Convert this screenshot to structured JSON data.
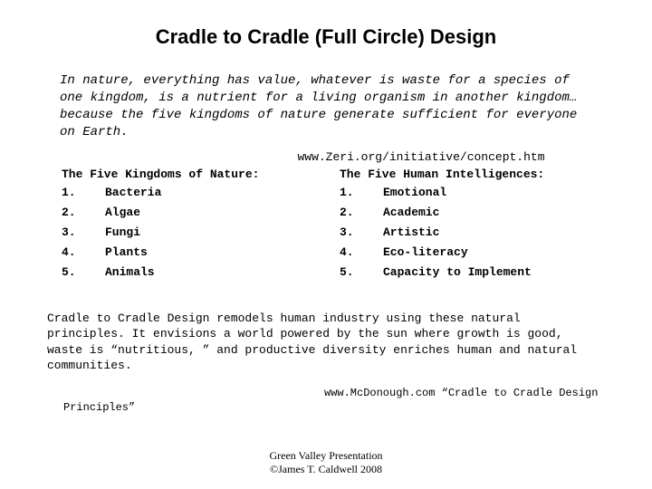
{
  "title": "Cradle to Cradle (Full Circle) Design",
  "quote": "In nature, everything has value, whatever is waste for a species of one kingdom, is a nutrient for a living organism in another kingdom… because the five kingdoms of nature generate sufficient for everyone on Earth.",
  "source1": "www.Zeri.org/initiative/concept.htm",
  "left": {
    "head": "The Five Kingdoms of Nature:",
    "items": [
      {
        "num": "1.",
        "label": "Bacteria"
      },
      {
        "num": "2.",
        "label": "Algae"
      },
      {
        "num": "3.",
        "label": "Fungi"
      },
      {
        "num": "4.",
        "label": "Plants"
      },
      {
        "num": "5.",
        "label": "Animals"
      }
    ]
  },
  "right": {
    "head": "The Five Human Intelligences:",
    "items": [
      {
        "num": "1.",
        "label": "Emotional"
      },
      {
        "num": "2.",
        "label": "Academic"
      },
      {
        "num": "3.",
        "label": "Artistic"
      },
      {
        "num": "4.",
        "label": "Eco-literacy"
      },
      {
        "num": "5.",
        "label": "Capacity to Implement"
      }
    ]
  },
  "para2": "Cradle to Cradle Design remodels human industry using these natural principles. It envisions a world powered by the sun where growth is good, waste is “nutritious, ” and productive diversity enriches human and natural communities.",
  "source2_a": "www.McDonough.com  “Cradle to Cradle Design",
  "source2_b": "Principles”",
  "footer1": "Green Valley Presentation",
  "footer2": "©James T. Caldwell 2008",
  "colors": {
    "bg": "#ffffff",
    "text": "#000000"
  },
  "fonts": {
    "title_family": "Arial",
    "title_size_pt": 16,
    "title_weight": "bold",
    "quote_family": "Courier New",
    "quote_style": "italic",
    "quote_size_pt": 11,
    "list_family": "Courier New",
    "list_weight": "bold",
    "list_size_pt": 10,
    "body_family": "Courier New",
    "body_size_pt": 10,
    "footer_family": "Times New Roman",
    "footer_size_pt": 9
  }
}
